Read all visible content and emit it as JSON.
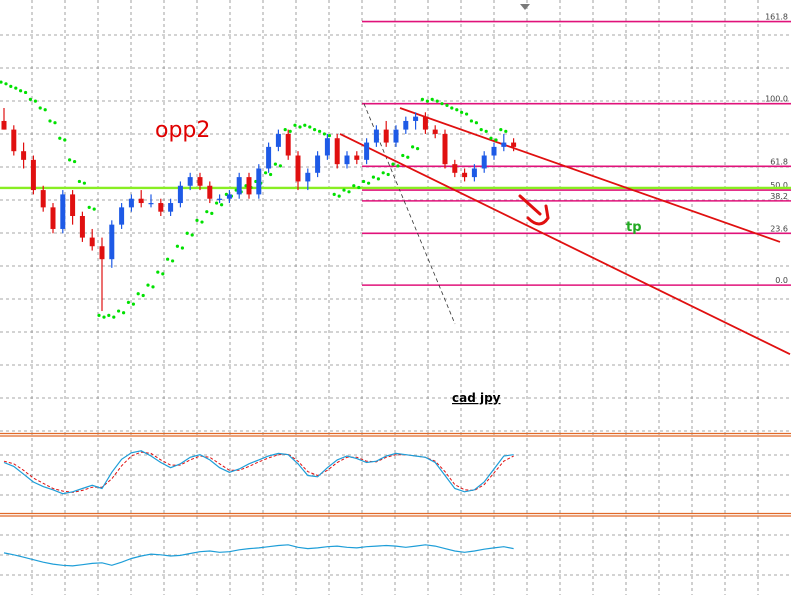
{
  "chart_data": {
    "type": "candlestick",
    "symbol": "cad jpy",
    "annotations": {
      "opp": "opp2",
      "tp": "tp",
      "pair": "cad jpy"
    },
    "colors": {
      "bull": "#1e5ae6",
      "bear": "#e01010",
      "fib": "#e0127a",
      "channel": "#e01010",
      "psar": "#00e000",
      "horizontal": "#88ee22",
      "stoch_main": "#1e9ed8",
      "stoch_signal": "#e01010",
      "osc": "#1e9ed8",
      "separator": "#e06a2a",
      "grid": "#8a8a8a"
    },
    "price_range": [
      0,
      100
    ],
    "fibonacci": [
      {
        "label": "161.8",
        "value": 95
      },
      {
        "label": "100.0",
        "value": 76
      },
      {
        "label": "61.8",
        "value": 61.5
      },
      {
        "label": "50.0",
        "value": 56
      },
      {
        "label": "38.2",
        "value": 53.5
      },
      {
        "label": "23.6",
        "value": 46
      },
      {
        "label": "0.0",
        "value": 34
      }
    ],
    "horizontal_line": 56.5,
    "candles": [
      {
        "o": 72,
        "h": 75,
        "l": 70,
        "c": 70
      },
      {
        "o": 70,
        "h": 71,
        "l": 64,
        "c": 65
      },
      {
        "o": 65,
        "h": 67,
        "l": 61,
        "c": 63
      },
      {
        "o": 63,
        "h": 64,
        "l": 55,
        "c": 56
      },
      {
        "o": 56,
        "h": 57,
        "l": 51,
        "c": 52
      },
      {
        "o": 52,
        "h": 53,
        "l": 46,
        "c": 47
      },
      {
        "o": 47,
        "h": 56,
        "l": 46,
        "c": 55
      },
      {
        "o": 55,
        "h": 56,
        "l": 48,
        "c": 50
      },
      {
        "o": 50,
        "h": 51,
        "l": 44,
        "c": 45
      },
      {
        "o": 45,
        "h": 47,
        "l": 42,
        "c": 43
      },
      {
        "o": 43,
        "h": 45,
        "l": 28,
        "c": 40
      },
      {
        "o": 40,
        "h": 49,
        "l": 38,
        "c": 48
      },
      {
        "o": 48,
        "h": 53,
        "l": 47,
        "c": 52
      },
      {
        "o": 52,
        "h": 55,
        "l": 51,
        "c": 54
      },
      {
        "o": 54,
        "h": 56,
        "l": 52,
        "c": 53
      },
      {
        "o": 53,
        "h": 55,
        "l": 52,
        "c": 53
      },
      {
        "o": 53,
        "h": 54,
        "l": 50,
        "c": 51
      },
      {
        "o": 51,
        "h": 54,
        "l": 50,
        "c": 53
      },
      {
        "o": 53,
        "h": 58,
        "l": 52,
        "c": 57
      },
      {
        "o": 57,
        "h": 60,
        "l": 56,
        "c": 59
      },
      {
        "o": 59,
        "h": 60,
        "l": 56,
        "c": 57
      },
      {
        "o": 57,
        "h": 58,
        "l": 53,
        "c": 54
      },
      {
        "o": 54,
        "h": 55,
        "l": 53,
        "c": 54
      },
      {
        "o": 54,
        "h": 56,
        "l": 53,
        "c": 55
      },
      {
        "o": 55,
        "h": 60,
        "l": 54,
        "c": 59
      },
      {
        "o": 59,
        "h": 60,
        "l": 54,
        "c": 55
      },
      {
        "o": 55,
        "h": 62,
        "l": 54,
        "c": 61
      },
      {
        "o": 61,
        "h": 67,
        "l": 60,
        "c": 66
      },
      {
        "o": 66,
        "h": 70,
        "l": 65,
        "c": 69
      },
      {
        "o": 69,
        "h": 70,
        "l": 63,
        "c": 64
      },
      {
        "o": 64,
        "h": 65,
        "l": 56,
        "c": 58
      },
      {
        "o": 58,
        "h": 61,
        "l": 56,
        "c": 60
      },
      {
        "o": 60,
        "h": 65,
        "l": 59,
        "c": 64
      },
      {
        "o": 64,
        "h": 69,
        "l": 63,
        "c": 68
      },
      {
        "o": 68,
        "h": 69,
        "l": 61,
        "c": 62
      },
      {
        "o": 62,
        "h": 65,
        "l": 61,
        "c": 64
      },
      {
        "o": 64,
        "h": 65,
        "l": 62,
        "c": 63
      },
      {
        "o": 63,
        "h": 68,
        "l": 62,
        "c": 67
      },
      {
        "o": 67,
        "h": 71,
        "l": 66,
        "c": 70
      },
      {
        "o": 70,
        "h": 72,
        "l": 66,
        "c": 67
      },
      {
        "o": 67,
        "h": 71,
        "l": 66,
        "c": 70
      },
      {
        "o": 70,
        "h": 73,
        "l": 69,
        "c": 72
      },
      {
        "o": 72,
        "h": 74,
        "l": 70,
        "c": 73
      },
      {
        "o": 73,
        "h": 74,
        "l": 69,
        "c": 70
      },
      {
        "o": 70,
        "h": 71,
        "l": 68,
        "c": 69
      },
      {
        "o": 69,
        "h": 70,
        "l": 61,
        "c": 62
      },
      {
        "o": 62,
        "h": 63,
        "l": 59,
        "c": 60
      },
      {
        "o": 60,
        "h": 61,
        "l": 58,
        "c": 59
      },
      {
        "o": 59,
        "h": 62,
        "l": 58,
        "c": 61
      },
      {
        "o": 61,
        "h": 65,
        "l": 60,
        "c": 64
      },
      {
        "o": 64,
        "h": 67,
        "l": 63,
        "c": 66
      },
      {
        "o": 66,
        "h": 69,
        "l": 65,
        "c": 67
      },
      {
        "o": 67,
        "h": 68,
        "l": 65,
        "c": 66
      }
    ],
    "psar": [
      {
        "i": 0,
        "v": 81
      },
      {
        "i": 1,
        "v": 80
      },
      {
        "i": 2,
        "v": 79
      },
      {
        "i": 3,
        "v": 77
      },
      {
        "i": 4,
        "v": 75
      },
      {
        "i": 5,
        "v": 72
      },
      {
        "i": 6,
        "v": 68
      },
      {
        "i": 7,
        "v": 63
      },
      {
        "i": 8,
        "v": 58
      },
      {
        "i": 9,
        "v": 52
      },
      {
        "i": 10,
        "v": 27
      },
      {
        "i": 11,
        "v": 27
      },
      {
        "i": 12,
        "v": 28
      },
      {
        "i": 13,
        "v": 30
      },
      {
        "i": 14,
        "v": 32
      },
      {
        "i": 15,
        "v": 34
      },
      {
        "i": 16,
        "v": 37
      },
      {
        "i": 17,
        "v": 40
      },
      {
        "i": 18,
        "v": 43
      },
      {
        "i": 19,
        "v": 46
      },
      {
        "i": 20,
        "v": 49
      },
      {
        "i": 21,
        "v": 51
      },
      {
        "i": 22,
        "v": 53
      },
      {
        "i": 23,
        "v": 55
      },
      {
        "i": 24,
        "v": 56
      },
      {
        "i": 25,
        "v": 57
      },
      {
        "i": 26,
        "v": 58
      },
      {
        "i": 27,
        "v": 60
      },
      {
        "i": 28,
        "v": 62
      },
      {
        "i": 29,
        "v": 70
      },
      {
        "i": 30,
        "v": 71
      },
      {
        "i": 31,
        "v": 71
      },
      {
        "i": 32,
        "v": 70
      },
      {
        "i": 33,
        "v": 69
      },
      {
        "i": 34,
        "v": 55
      },
      {
        "i": 35,
        "v": 56
      },
      {
        "i": 36,
        "v": 57
      },
      {
        "i": 37,
        "v": 58
      },
      {
        "i": 38,
        "v": 59
      },
      {
        "i": 39,
        "v": 60
      },
      {
        "i": 40,
        "v": 62
      },
      {
        "i": 41,
        "v": 64
      },
      {
        "i": 42,
        "v": 66
      },
      {
        "i": 43,
        "v": 77
      },
      {
        "i": 44,
        "v": 77
      },
      {
        "i": 45,
        "v": 76
      },
      {
        "i": 46,
        "v": 75
      },
      {
        "i": 47,
        "v": 74
      },
      {
        "i": 48,
        "v": 72
      },
      {
        "i": 49,
        "v": 70
      },
      {
        "i": 50,
        "v": 68
      },
      {
        "i": 51,
        "v": 70
      }
    ],
    "stochastic_main": [
      70,
      64,
      52,
      40,
      33,
      28,
      22,
      25,
      30,
      35,
      30,
      55,
      75,
      85,
      88,
      80,
      70,
      62,
      68,
      78,
      82,
      74,
      62,
      55,
      60,
      68,
      74,
      80,
      84,
      82,
      68,
      50,
      48,
      62,
      74,
      80,
      76,
      70,
      72,
      80,
      84,
      82,
      80,
      78,
      70,
      50,
      30,
      25,
      28,
      40,
      60,
      80,
      82
    ],
    "stochastic_signal": [
      72,
      68,
      58,
      46,
      38,
      30,
      26,
      24,
      27,
      32,
      32,
      45,
      65,
      80,
      86,
      84,
      74,
      66,
      66,
      74,
      80,
      78,
      68,
      58,
      58,
      64,
      71,
      77,
      82,
      83,
      72,
      56,
      50,
      58,
      70,
      78,
      78,
      72,
      71,
      78,
      82,
      82,
      80,
      78,
      72,
      56,
      36,
      28,
      27,
      36,
      54,
      72,
      80
    ],
    "oscillator": [
      55,
      52,
      48,
      44,
      40,
      37,
      35,
      34,
      36,
      38,
      39,
      35,
      40,
      46,
      50,
      53,
      52,
      50,
      51,
      54,
      57,
      58,
      56,
      57,
      60,
      62,
      63,
      65,
      67,
      68,
      64,
      62,
      63,
      65,
      66,
      64,
      63,
      65,
      66,
      67,
      66,
      64,
      66,
      68,
      66,
      62,
      58,
      56,
      58,
      61,
      63,
      65,
      62
    ]
  }
}
